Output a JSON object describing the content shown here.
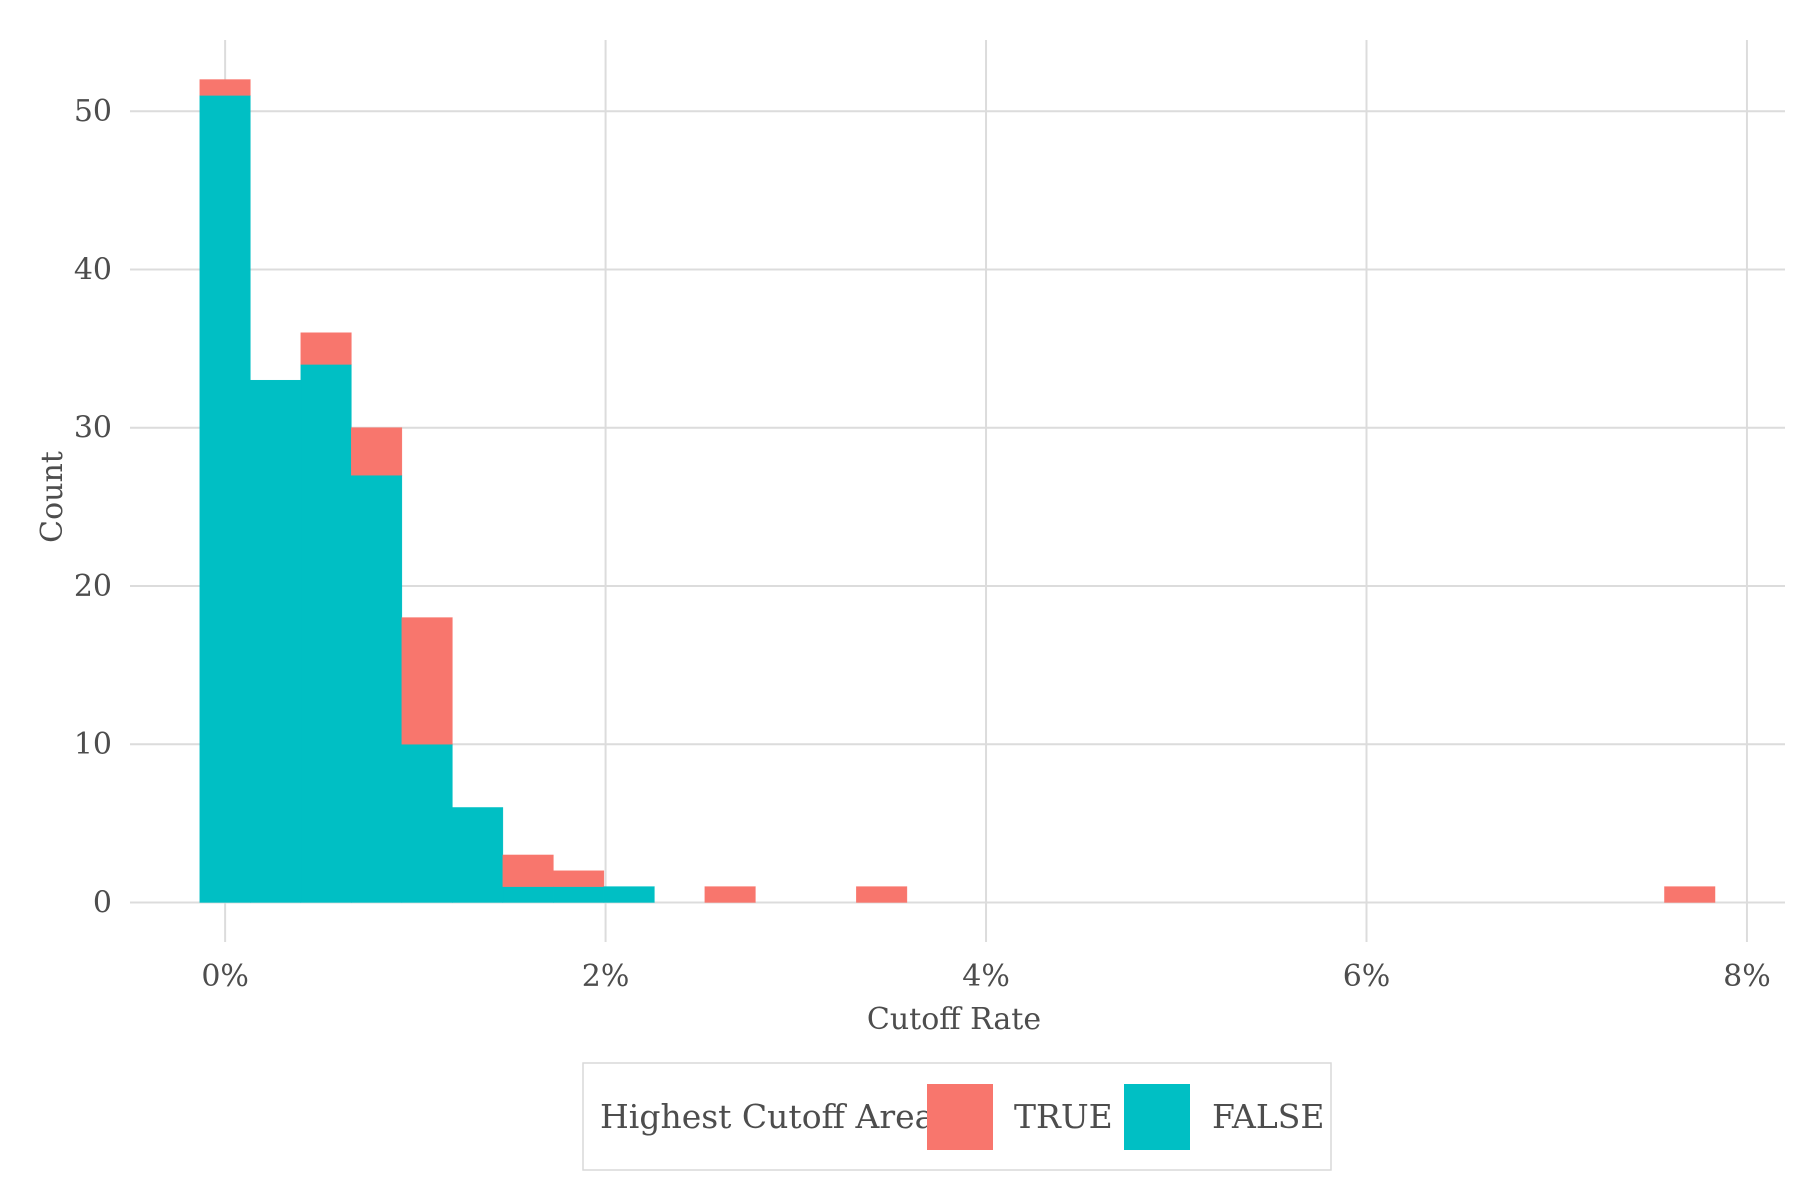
{
  "chart_data": {
    "type": "bar",
    "subtype": "stacked-histogram",
    "xlabel": "Cutoff Rate",
    "ylabel": "Count",
    "xlim": [
      -0.5,
      8.2
    ],
    "ylim": [
      -2.5,
      54.5
    ],
    "x_ticks": [
      {
        "value": 0,
        "label": "0%"
      },
      {
        "value": 2,
        "label": "2%"
      },
      {
        "value": 4,
        "label": "4%"
      },
      {
        "value": 6,
        "label": "6%"
      },
      {
        "value": 8,
        "label": "8%"
      }
    ],
    "y_ticks": [
      {
        "value": 0,
        "label": "0"
      },
      {
        "value": 10,
        "label": "10"
      },
      {
        "value": 20,
        "label": "20"
      },
      {
        "value": 30,
        "label": "30"
      },
      {
        "value": 40,
        "label": "40"
      },
      {
        "value": 50,
        "label": "50"
      }
    ],
    "bin_start": -0.133,
    "bin_width": 0.2655,
    "bins": [
      {
        "bin": 0,
        "false": 51,
        "true": 1
      },
      {
        "bin": 1,
        "false": 33,
        "true": 0
      },
      {
        "bin": 2,
        "false": 34,
        "true": 2
      },
      {
        "bin": 3,
        "false": 27,
        "true": 3
      },
      {
        "bin": 4,
        "false": 10,
        "true": 8
      },
      {
        "bin": 5,
        "false": 6,
        "true": 0
      },
      {
        "bin": 6,
        "false": 1,
        "true": 2
      },
      {
        "bin": 7,
        "false": 1,
        "true": 1
      },
      {
        "bin": 8,
        "false": 1,
        "true": 0
      },
      {
        "bin": 10,
        "false": 0,
        "true": 1
      },
      {
        "bin": 13,
        "false": 0,
        "true": 1
      },
      {
        "bin": 29,
        "false": 0,
        "true": 1
      }
    ],
    "series": [
      {
        "name": "TRUE",
        "key": "true",
        "color": "#F8766D"
      },
      {
        "name": "FALSE",
        "key": "false",
        "color": "#00BFC4"
      }
    ],
    "legend": {
      "title": "Highest Cutoff Area",
      "position": "bottom"
    },
    "grid": true
  }
}
